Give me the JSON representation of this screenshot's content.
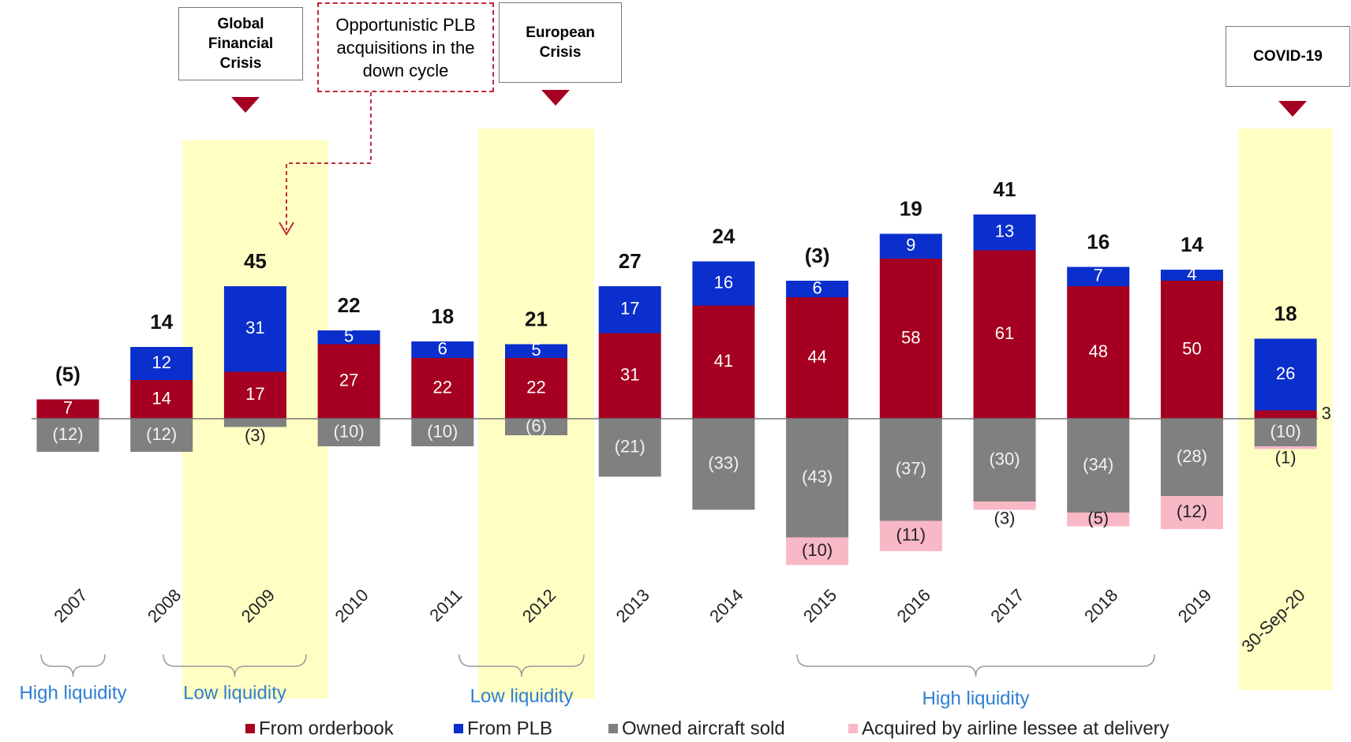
{
  "chart_data": {
    "type": "stacked_bar",
    "categories": [
      "2007",
      "2008",
      "2009",
      "2010",
      "2011",
      "2012",
      "2013",
      "2014",
      "2015",
      "2016",
      "2017",
      "2018",
      "2019",
      "30-Sep-20"
    ],
    "series": [
      {
        "name": "From orderbook",
        "color": "#a50021",
        "values": [
          7,
          14,
          17,
          27,
          22,
          22,
          31,
          41,
          44,
          58,
          61,
          48,
          50,
          3
        ]
      },
      {
        "name": "From PLB",
        "color": "#0a2fcc",
        "values": [
          null,
          12,
          31,
          5,
          6,
          5,
          17,
          16,
          6,
          9,
          13,
          7,
          4,
          26
        ]
      },
      {
        "name": "Owned aircraft sold",
        "color": "#808080",
        "values": [
          -12,
          -12,
          -3,
          -10,
          -10,
          -6,
          -21,
          -33,
          -43,
          -37,
          -30,
          -34,
          -28,
          -10
        ],
        "value_labels": [
          "(12)",
          "(12)",
          "(3)",
          "(10)",
          "(10)",
          "(6)",
          "(21)",
          "(33)",
          "(43)",
          "(37)",
          "(30)",
          "(34)",
          "(28)",
          "(10)"
        ]
      },
      {
        "name": "Acquired by airline lessee at delivery",
        "color": "#f9b8c6",
        "values": [
          null,
          null,
          null,
          null,
          null,
          null,
          null,
          null,
          -10,
          -11,
          -3,
          -5,
          -12,
          -1
        ],
        "value_labels": [
          null,
          null,
          null,
          null,
          null,
          null,
          null,
          null,
          "(10)",
          "(11)",
          "(3)",
          "(5)",
          "(12)",
          "(1)"
        ]
      }
    ],
    "totals": {
      "values": [
        -5,
        14,
        45,
        22,
        18,
        21,
        27,
        24,
        -3,
        19,
        41,
        16,
        14,
        18
      ],
      "value_labels": [
        "(5)",
        "14",
        "45",
        "22",
        "18",
        "21",
        "27",
        "24",
        "(3)",
        "19",
        "41",
        "16",
        "14",
        "18"
      ]
    },
    "annotations": [
      "Global Financial Crisis",
      "Opportunistic PLB acquisitions in the down cycle",
      "European Crisis",
      "COVID-19"
    ],
    "liquidity_labels": [
      "High liquidity",
      "Low liquidity",
      "Low liquidity",
      "High liquidity"
    ]
  }
}
